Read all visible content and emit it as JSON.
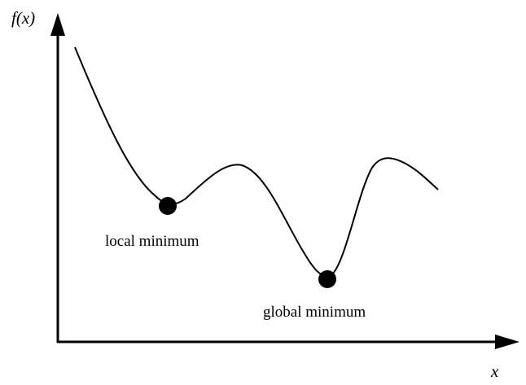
{
  "diagram": {
    "y_axis_label": "f(x)",
    "x_axis_label": "x",
    "annotations": {
      "local_minimum": "local minimum",
      "global_minimum": "global minimum"
    }
  },
  "colors": {
    "ink": "#000000",
    "background": "#ffffff"
  }
}
